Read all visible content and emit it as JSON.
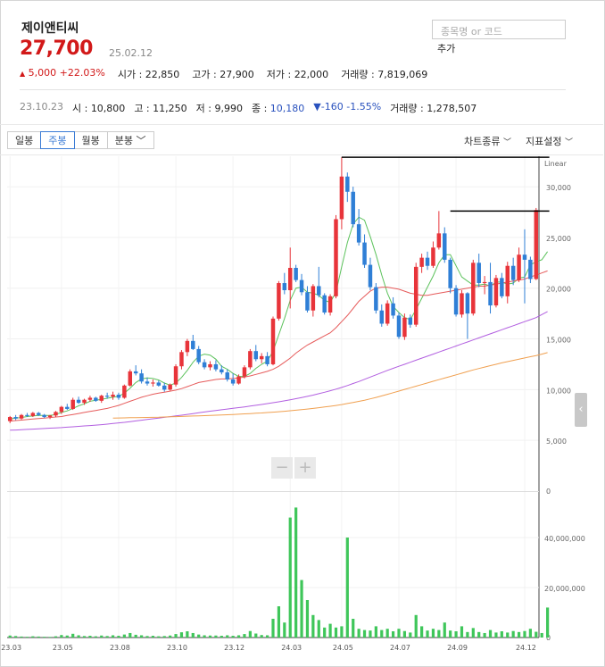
{
  "stock": {
    "name": "제이앤티씨",
    "price": "27,700",
    "price_date": "25.02.12",
    "change": "5,000",
    "change_pct": "+22.03%",
    "open": "22,850",
    "high": "27,900",
    "low": "22,000",
    "volume": "7,819,069",
    "open_label": "시가",
    "high_label": "고가",
    "low_label": "저가",
    "volume_label": "거래량"
  },
  "search": {
    "placeholder": "종목명 or 코드",
    "add_label": "추가"
  },
  "hover": {
    "date": "23.10.23",
    "open_label": "시",
    "open": "10,800",
    "high_label": "고",
    "high": "11,250",
    "low_label": "저",
    "low": "9,990",
    "close_label": "종",
    "close": "10,180",
    "change": "-160",
    "change_pct": "-1.55%",
    "volume_label": "거래량",
    "volume": "1,278,507"
  },
  "toolbar": {
    "tabs": [
      "일봉",
      "주봉",
      "월봉",
      "분봉"
    ],
    "active_tab": 1,
    "chart_type_label": "차트종류",
    "indicator_label": "지표설정"
  },
  "colors": {
    "up": "#d21919",
    "down": "#2a52be",
    "bull_candle": "#e8343a",
    "bear_candle": "#2f7fd6",
    "ma5": "#5cc25c",
    "ma20": "#e65b5b",
    "ma60": "#b25fe0",
    "ma120": "#f0a050",
    "volume": "#3fc65a",
    "resistance": "#000000"
  },
  "chart_data": {
    "type": "candlestick",
    "scale_label": "Linear",
    "ylim": [
      0,
      33000
    ],
    "yticks": [
      "5,000",
      "10,000",
      "15,000",
      "20,000",
      "25,000",
      "30,000"
    ],
    "ytick_values": [
      5000,
      10000,
      15000,
      20000,
      25000,
      30000
    ],
    "xticks": [
      "23.03",
      "23.05",
      "23.08",
      "23.10",
      "23.12",
      "24.03",
      "24.05",
      "24.07",
      "24.09",
      "24.12"
    ],
    "xtick_index": [
      0,
      9,
      19,
      29,
      39,
      49,
      58,
      68,
      78,
      90
    ],
    "candles": [
      [
        6900,
        7400,
        6700,
        7300
      ],
      [
        7300,
        7500,
        7000,
        7150
      ],
      [
        7150,
        7600,
        7050,
        7500
      ],
      [
        7500,
        7700,
        7300,
        7400
      ],
      [
        7400,
        7800,
        7300,
        7700
      ],
      [
        7700,
        7800,
        7400,
        7500
      ],
      [
        7500,
        7600,
        7200,
        7300
      ],
      [
        7300,
        7500,
        7100,
        7450
      ],
      [
        7450,
        7900,
        7300,
        7800
      ],
      [
        7800,
        8400,
        7600,
        8300
      ],
      [
        8300,
        8600,
        8000,
        8100
      ],
      [
        8100,
        9200,
        8000,
        9000
      ],
      [
        9000,
        9300,
        8600,
        8700
      ],
      [
        8700,
        9100,
        8500,
        9000
      ],
      [
        9000,
        9400,
        8800,
        9200
      ],
      [
        9200,
        9300,
        8800,
        8900
      ],
      [
        8900,
        9500,
        8700,
        9400
      ],
      [
        9400,
        9700,
        9100,
        9300
      ],
      [
        9300,
        9800,
        9000,
        9500
      ],
      [
        9500,
        9700,
        9000,
        9200
      ],
      [
        9200,
        10500,
        9100,
        10400
      ],
      [
        10400,
        12000,
        10300,
        11800
      ],
      [
        11800,
        12400,
        11400,
        11600
      ],
      [
        11600,
        12000,
        10600,
        10800
      ],
      [
        10800,
        11200,
        10400,
        10600
      ],
      [
        10600,
        11000,
        10300,
        10700
      ],
      [
        10700,
        10900,
        10300,
        10400
      ],
      [
        10400,
        10700,
        9800,
        10000
      ],
      [
        10000,
        10600,
        9900,
        10500
      ],
      [
        10500,
        12500,
        10300,
        12300
      ],
      [
        12300,
        13900,
        12000,
        13700
      ],
      [
        13700,
        15000,
        13300,
        14800
      ],
      [
        14800,
        15400,
        13900,
        14000
      ],
      [
        14000,
        14300,
        12500,
        12700
      ],
      [
        12700,
        13000,
        12000,
        12200
      ],
      [
        12200,
        12800,
        11900,
        12500
      ],
      [
        12500,
        12900,
        11800,
        12000
      ],
      [
        12000,
        12400,
        11500,
        11700
      ],
      [
        11700,
        12000,
        10800,
        11000
      ],
      [
        11000,
        11600,
        10400,
        10600
      ],
      [
        10600,
        11500,
        10500,
        11300
      ],
      [
        11300,
        12400,
        11100,
        12200
      ],
      [
        12200,
        14000,
        12000,
        13800
      ],
      [
        13800,
        14400,
        12800,
        13000
      ],
      [
        13000,
        13600,
        12600,
        13300
      ],
      [
        13300,
        13700,
        12300,
        12500
      ],
      [
        12500,
        17200,
        12400,
        17000
      ],
      [
        17000,
        20700,
        16800,
        20500
      ],
      [
        20500,
        21500,
        19400,
        19800
      ],
      [
        19800,
        24000,
        18000,
        22000
      ],
      [
        22000,
        22300,
        20600,
        20800
      ],
      [
        20800,
        21400,
        19300,
        19600
      ],
      [
        19600,
        20200,
        17600,
        17800
      ],
      [
        17800,
        20400,
        17200,
        20200
      ],
      [
        20200,
        22100,
        19100,
        19300
      ],
      [
        19300,
        19500,
        17400,
        17600
      ],
      [
        17600,
        19400,
        17300,
        19200
      ],
      [
        19200,
        27200,
        19000,
        26800
      ],
      [
        26800,
        32900,
        25800,
        31000
      ],
      [
        31000,
        31400,
        28500,
        29500
      ],
      [
        29500,
        30000,
        26000,
        26300
      ],
      [
        26300,
        27800,
        24200,
        24500
      ],
      [
        24500,
        25300,
        22000,
        22300
      ],
      [
        22300,
        23000,
        19800,
        20100
      ],
      [
        20100,
        20500,
        17500,
        17800
      ],
      [
        17800,
        18400,
        16200,
        16500
      ],
      [
        16500,
        18800,
        16300,
        18500
      ],
      [
        18500,
        19100,
        17000,
        17300
      ],
      [
        17300,
        17600,
        15000,
        15200
      ],
      [
        15200,
        17500,
        14900,
        17100
      ],
      [
        17100,
        17400,
        16100,
        16400
      ],
      [
        16400,
        22500,
        16200,
        22100
      ],
      [
        22100,
        23400,
        21500,
        23000
      ],
      [
        23000,
        23600,
        21800,
        22200
      ],
      [
        22200,
        24600,
        22000,
        24000
      ],
      [
        24000,
        27600,
        23800,
        25400
      ],
      [
        25400,
        26000,
        22500,
        22800
      ],
      [
        22800,
        23000,
        19500,
        20000
      ],
      [
        20000,
        20300,
        17200,
        17400
      ],
      [
        17400,
        19800,
        17100,
        19500
      ],
      [
        19500,
        19600,
        15000,
        17500
      ],
      [
        17500,
        22800,
        17300,
        22500
      ],
      [
        22500,
        23400,
        20100,
        20500
      ],
      [
        20500,
        21200,
        19400,
        20600
      ],
      [
        20600,
        22500,
        17500,
        18300
      ],
      [
        18300,
        21300,
        18100,
        21000
      ],
      [
        21000,
        21500,
        19000,
        19200
      ],
      [
        19200,
        22600,
        18500,
        22200
      ],
      [
        22200,
        23000,
        20300,
        20800
      ],
      [
        20800,
        24000,
        20600,
        23300
      ],
      [
        23300,
        25800,
        18500,
        22800
      ],
      [
        22800,
        23100,
        20500,
        20900
      ],
      [
        20900,
        27900,
        20800,
        27700
      ]
    ],
    "series": [
      {
        "name": "MA5",
        "values": [
          7100,
          7200,
          7250,
          7350,
          7400,
          7450,
          7450,
          7450,
          7550,
          7750,
          7900,
          8150,
          8400,
          8600,
          8850,
          8950,
          9050,
          9150,
          9250,
          9350,
          9650,
          10150,
          10700,
          11050,
          11150,
          11100,
          10950,
          10650,
          10450,
          10650,
          11200,
          11900,
          12700,
          13300,
          13500,
          13400,
          13000,
          12300,
          12000,
          11600,
          11300,
          11300,
          11600,
          12100,
          12500,
          12800,
          13800,
          15400,
          17000,
          18800,
          20000,
          20100,
          19600,
          19500,
          19300,
          18800,
          18600,
          19600,
          22100,
          24500,
          26300,
          27000,
          26700,
          25100,
          23300,
          21300,
          19500,
          18200,
          17600,
          17100,
          16900,
          17900,
          19000,
          20100,
          21200,
          22500,
          23300,
          23300,
          22200,
          21100,
          20700,
          20300,
          20300,
          20400,
          20200,
          20600,
          20600,
          20400,
          20500,
          21000,
          21100,
          22300,
          22600,
          22800,
          23600
        ]
      },
      {
        "name": "MA20",
        "values": [
          6900,
          6950,
          7000,
          7050,
          7100,
          7150,
          7200,
          7250,
          7300,
          7350,
          7450,
          7550,
          7650,
          7750,
          7850,
          7950,
          8050,
          8150,
          8300,
          8450,
          8650,
          8850,
          9050,
          9250,
          9400,
          9550,
          9650,
          9750,
          9850,
          9950,
          10100,
          10300,
          10500,
          10700,
          10800,
          10900,
          11000,
          11050,
          11050,
          11100,
          11150,
          11250,
          11350,
          11500,
          11650,
          11800,
          12000,
          12300,
          12700,
          13100,
          13600,
          14000,
          14400,
          14700,
          15000,
          15300,
          15600,
          16100,
          16700,
          17300,
          18000,
          18700,
          19200,
          19700,
          20000,
          20100,
          20100,
          20000,
          19900,
          19700,
          19500,
          19400,
          19300,
          19300,
          19400,
          19500,
          19600,
          19700,
          19800,
          19900,
          20000,
          20100,
          20200,
          20200,
          20300,
          20400,
          20500,
          20600,
          20700,
          20800,
          20900,
          21100,
          21300,
          21500,
          21700
        ]
      },
      {
        "name": "MA60",
        "values": [
          6000,
          6020,
          6050,
          6080,
          6110,
          6140,
          6170,
          6200,
          6230,
          6260,
          6300,
          6340,
          6380,
          6420,
          6460,
          6500,
          6550,
          6600,
          6660,
          6720,
          6780,
          6850,
          6920,
          6990,
          7060,
          7130,
          7200,
          7270,
          7340,
          7410,
          7480,
          7560,
          7640,
          7720,
          7800,
          7880,
          7950,
          8020,
          8090,
          8160,
          8230,
          8300,
          8380,
          8460,
          8540,
          8620,
          8710,
          8800,
          8900,
          9000,
          9110,
          9220,
          9340,
          9460,
          9600,
          9740,
          9890,
          10050,
          10220,
          10400,
          10600,
          10800,
          11020,
          11240,
          11460,
          11680,
          11900,
          12100,
          12300,
          12500,
          12700,
          12900,
          13100,
          13300,
          13500,
          13700,
          13900,
          14100,
          14300,
          14500,
          14700,
          14900,
          15100,
          15300,
          15500,
          15700,
          15900,
          16100,
          16300,
          16500,
          16700,
          16900,
          17100,
          17400,
          17700
        ]
      },
      {
        "name": "MA120",
        "values": [
          null,
          null,
          null,
          null,
          null,
          null,
          null,
          null,
          null,
          null,
          null,
          null,
          null,
          null,
          null,
          null,
          null,
          null,
          7200,
          7210,
          7220,
          7230,
          7240,
          7250,
          7260,
          7270,
          7280,
          7300,
          7320,
          7340,
          7360,
          7380,
          7400,
          7420,
          7440,
          7460,
          7480,
          7500,
          7520,
          7550,
          7580,
          7610,
          7640,
          7670,
          7700,
          7740,
          7780,
          7820,
          7870,
          7920,
          7970,
          8030,
          8090,
          8150,
          8220,
          8290,
          8360,
          8440,
          8530,
          8630,
          8730,
          8840,
          8960,
          9090,
          9230,
          9380,
          9540,
          9700,
          9860,
          10020,
          10180,
          10340,
          10500,
          10660,
          10820,
          10980,
          11140,
          11300,
          11460,
          11620,
          11780,
          11940,
          12080,
          12220,
          12360,
          12500,
          12640,
          12760,
          12880,
          13000,
          13120,
          13240,
          13360,
          13500,
          13650
        ]
      }
    ],
    "volume_ticks": [
      "20,000,000",
      "40,000,000"
    ],
    "volume_tick_values": [
      20000000,
      40000000
    ],
    "volume_zero_label": "0",
    "price_zero_label": "0",
    "volume_ylim": [
      0,
      55000000
    ],
    "volumes": [
      800000,
      600000,
      400000,
      300000,
      500000,
      400000,
      300000,
      250000,
      500000,
      1000000,
      800000,
      1500000,
      900000,
      600000,
      700000,
      500000,
      800000,
      600000,
      900000,
      700000,
      1200000,
      1800000,
      1100000,
      900000,
      600000,
      700000,
      500000,
      600000,
      800000,
      1400000,
      2100000,
      2500000,
      1800000,
      1200000,
      900000,
      800000,
      800000,
      700000,
      900000,
      700000,
      900000,
      1400000,
      2600000,
      1600000,
      1000000,
      900000,
      7500000,
      12500000,
      6000000,
      48000000,
      52000000,
      23000000,
      15000000,
      9000000,
      7000000,
      4000000,
      5500000,
      4000000,
      4500000,
      40000000,
      7500000,
      3500000,
      3000000,
      2800000,
      4500000,
      3000000,
      3500000,
      2500000,
      3500000,
      2600000,
      2000000,
      9000000,
      4500000,
      2800000,
      3500000,
      3000000,
      6000000,
      2800000,
      2500000,
      4500000,
      2200000,
      3800000,
      2200000,
      1800000,
      3000000,
      2000000,
      2500000,
      2000000,
      2600000,
      2200000,
      2600000,
      3500000,
      2300000,
      1800000,
      12000000
    ],
    "resistance_lines": [
      {
        "from_index": 58,
        "to_index": 94,
        "value": 32900
      },
      {
        "from_index": 77,
        "to_index": 94,
        "value": 27600
      }
    ]
  }
}
